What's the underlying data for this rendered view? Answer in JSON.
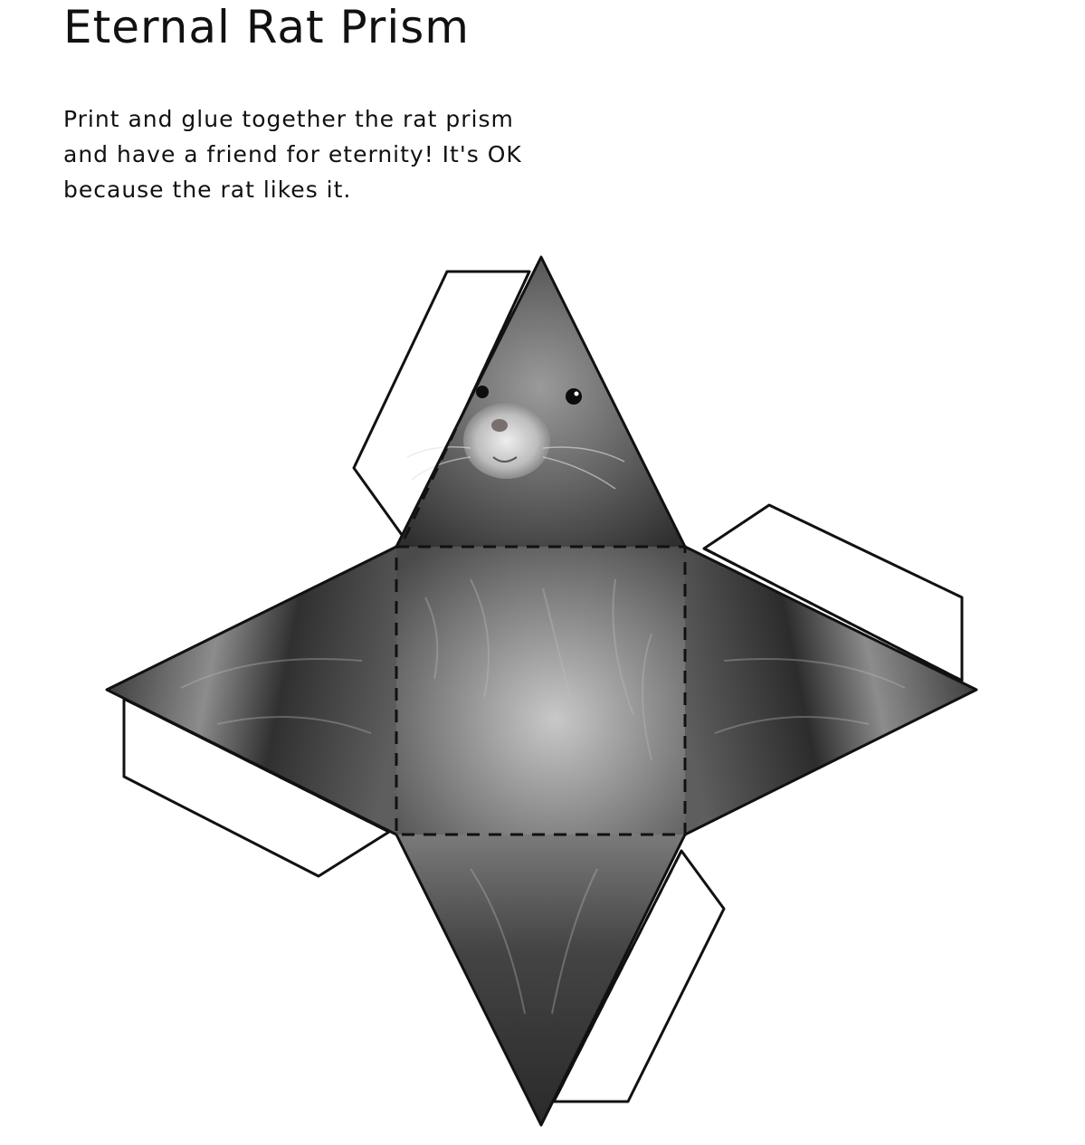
{
  "header": {
    "title": "Eternal Rat Prism"
  },
  "description": {
    "lines": [
      "Print and glue together the rat prism",
      "and have a friend for eternity! It's OK",
      "because the rat likes it."
    ]
  },
  "colors": {
    "background": "#ffffff",
    "ink": "#111111",
    "fur_dark": "#2e2e2e",
    "fur_mid": "#6f6f6f",
    "fur_light": "#cfcfcf"
  }
}
